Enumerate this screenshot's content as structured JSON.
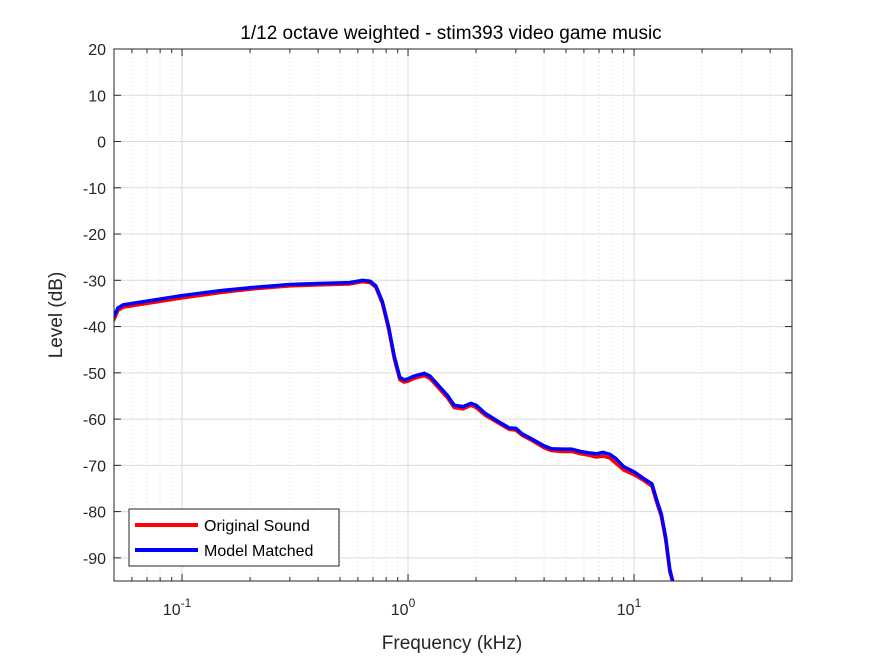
{
  "chart_data": {
    "type": "line",
    "title": "1/12 octave weighted - stim393 video game music",
    "xlabel": "Frequency (kHz)",
    "ylabel": "Level (dB)",
    "xscale": "log",
    "xlim": [
      0.05,
      50
    ],
    "ylim": [
      -95,
      20
    ],
    "grid": true,
    "legend_position": "bottom-left",
    "x_ticks": [
      {
        "value": 0.1,
        "base": "10",
        "exp": "-1"
      },
      {
        "value": 1,
        "base": "10",
        "exp": "0"
      },
      {
        "value": 10,
        "base": "10",
        "exp": "1"
      }
    ],
    "y_ticks": [
      20,
      10,
      0,
      -10,
      -20,
      -30,
      -40,
      -50,
      -60,
      -70,
      -80,
      -90
    ],
    "series": [
      {
        "name": "Original Sound",
        "color": "#ff0000",
        "x": [
          0.05,
          0.052,
          0.055,
          0.06,
          0.07,
          0.1,
          0.15,
          0.2,
          0.3,
          0.4,
          0.55,
          0.63,
          0.68,
          0.72,
          0.77,
          0.82,
          0.87,
          0.92,
          0.96,
          1.0,
          1.05,
          1.1,
          1.18,
          1.25,
          1.35,
          1.5,
          1.6,
          1.75,
          1.9,
          2.0,
          2.2,
          2.5,
          2.8,
          3.0,
          3.2,
          3.5,
          4.0,
          4.3,
          4.8,
          5.3,
          5.8,
          6.3,
          6.8,
          7.3,
          7.8,
          8.3,
          9.0,
          10.0,
          11.0,
          12.0,
          12.6,
          13.2,
          13.8,
          14.4,
          15.0
        ],
        "y": [
          -38.5,
          -36.5,
          -35.8,
          -35.5,
          -35.0,
          -33.8,
          -32.6,
          -31.9,
          -31.2,
          -31.0,
          -30.8,
          -30.3,
          -30.5,
          -31.5,
          -35.0,
          -40.5,
          -47.0,
          -51.5,
          -52.0,
          -51.8,
          -51.3,
          -51.0,
          -50.6,
          -51.2,
          -53.0,
          -55.5,
          -57.5,
          -57.8,
          -57.0,
          -57.5,
          -59.2,
          -60.8,
          -62.2,
          -62.4,
          -63.5,
          -64.5,
          -66.2,
          -66.8,
          -67.0,
          -67.0,
          -67.5,
          -67.8,
          -68.2,
          -68.0,
          -68.4,
          -69.5,
          -71.0,
          -72.0,
          -73.2,
          -74.5,
          -78.0,
          -81.0,
          -86.0,
          -93.0,
          -96.0
        ]
      },
      {
        "name": "Model Matched",
        "color": "#0000ff",
        "x": [
          0.05,
          0.052,
          0.055,
          0.06,
          0.07,
          0.1,
          0.15,
          0.2,
          0.3,
          0.4,
          0.55,
          0.63,
          0.68,
          0.72,
          0.77,
          0.82,
          0.87,
          0.92,
          0.96,
          1.0,
          1.05,
          1.1,
          1.18,
          1.25,
          1.35,
          1.5,
          1.6,
          1.75,
          1.9,
          2.0,
          2.2,
          2.5,
          2.8,
          3.0,
          3.2,
          3.5,
          4.0,
          4.3,
          4.8,
          5.3,
          5.8,
          6.3,
          6.8,
          7.3,
          7.8,
          8.3,
          9.0,
          10.0,
          11.0,
          12.0,
          12.6,
          13.2,
          13.8,
          14.4,
          15.0
        ],
        "y": [
          -37.8,
          -36.0,
          -35.3,
          -35.0,
          -34.5,
          -33.3,
          -32.2,
          -31.6,
          -30.9,
          -30.7,
          -30.5,
          -30.0,
          -30.2,
          -31.2,
          -34.6,
          -40.0,
          -46.5,
          -51.0,
          -51.5,
          -51.3,
          -50.8,
          -50.5,
          -50.1,
          -50.7,
          -52.5,
          -55.0,
          -57.0,
          -57.3,
          -56.6,
          -57.0,
          -58.8,
          -60.5,
          -61.9,
          -62.0,
          -63.2,
          -64.2,
          -65.8,
          -66.4,
          -66.5,
          -66.5,
          -67.0,
          -67.3,
          -67.5,
          -67.2,
          -67.6,
          -68.5,
          -70.3,
          -71.4,
          -72.8,
          -74.0,
          -77.5,
          -80.5,
          -85.5,
          -92.5,
          -96.0
        ]
      }
    ]
  }
}
